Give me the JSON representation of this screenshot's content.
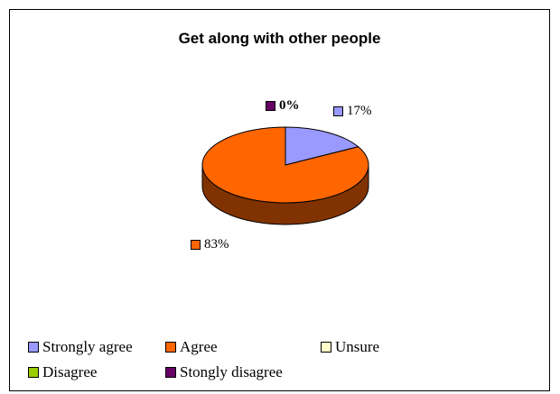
{
  "chart_data": {
    "type": "pie",
    "title": "Get along with other people",
    "categories": [
      "Strongly agree",
      "Agree",
      "Unsure",
      "Disagree",
      "Stongly disagree"
    ],
    "values": [
      17,
      83,
      0,
      0,
      0
    ],
    "labels": [
      "17%",
      "83%",
      "",
      "",
      "0%"
    ],
    "colors": [
      "#9999FF",
      "#FF6600",
      "#FFFFCC",
      "#99CC00",
      "#660066"
    ],
    "side_colors": [
      "#4D4D80",
      "#803300",
      "#80806A",
      "#4D6600",
      "#330033"
    ],
    "legend_position": "bottom",
    "three_d": true
  }
}
